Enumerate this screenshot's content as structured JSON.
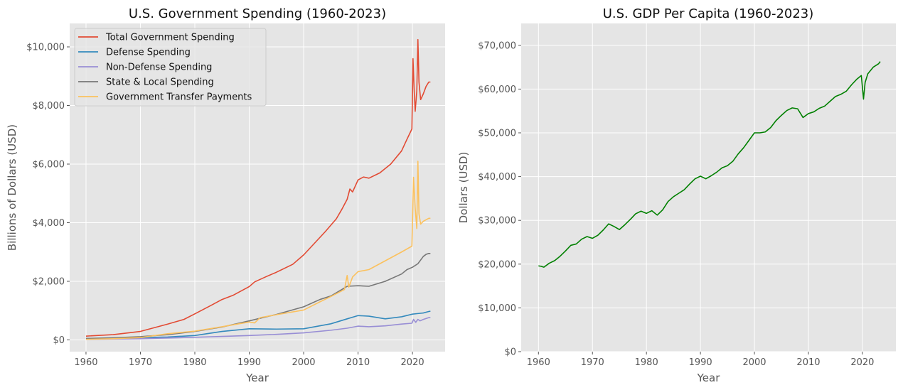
{
  "chart_data": [
    {
      "type": "line",
      "title": "U.S. Government Spending (1960-2023)",
      "xlabel": "Year",
      "ylabel": "Billions of Dollars (USD)",
      "xlim": [
        1957,
        2026
      ],
      "ylim": [
        -400,
        10800
      ],
      "xticks": [
        1960,
        1970,
        1980,
        1990,
        2000,
        2010,
        2020
      ],
      "xtick_labels": [
        "1960",
        "1970",
        "1980",
        "1990",
        "2000",
        "2010",
        "2020"
      ],
      "yticks": [
        0,
        2000,
        4000,
        6000,
        8000,
        10000
      ],
      "ytick_labels": [
        "$0",
        "$2,000",
        "$4,000",
        "$6,000",
        "$8,000",
        "$10,000"
      ],
      "grid": true,
      "legend_position": "top-left",
      "series": [
        {
          "name": "Total Government Spending",
          "color": "#E24A33",
          "x": [
            1960,
            1965,
            1970,
            1975,
            1978,
            1980,
            1983,
            1985,
            1987,
            1990,
            1991,
            1993,
            1995,
            1998,
            2000,
            2002,
            2004,
            2006,
            2007,
            2008,
            2008.5,
            2009,
            2010,
            2011,
            2012,
            2014,
            2016,
            2018,
            2019,
            2019.9,
            2020.1,
            2020.3,
            2020.5,
            2020.8,
            2021,
            2021.2,
            2021.5,
            2022,
            2022.5,
            2023,
            2023.3
          ],
          "y": [
            130,
            180,
            290,
            540,
            700,
            890,
            1180,
            1380,
            1520,
            1820,
            1980,
            2150,
            2310,
            2580,
            2900,
            3300,
            3700,
            4130,
            4450,
            4800,
            5150,
            5050,
            5460,
            5560,
            5520,
            5700,
            6000,
            6450,
            6850,
            7200,
            9600,
            8600,
            7800,
            8500,
            10250,
            8800,
            8200,
            8400,
            8650,
            8800,
            8800
          ]
        },
        {
          "name": "Defense Spending",
          "color": "#348ABD",
          "x": [
            1960,
            1965,
            1970,
            1975,
            1980,
            1985,
            1990,
            1995,
            2000,
            2005,
            2008,
            2010,
            2012,
            2015,
            2018,
            2020,
            2021,
            2022,
            2023,
            2023.3
          ],
          "y": [
            50,
            55,
            80,
            100,
            150,
            290,
            380,
            370,
            380,
            550,
            720,
            830,
            810,
            720,
            790,
            880,
            900,
            920,
            970,
            980
          ]
        },
        {
          "name": "Non-Defense Spending",
          "color": "#988ED5",
          "x": [
            1960,
            1970,
            1980,
            1985,
            1990,
            1995,
            2000,
            2005,
            2008,
            2010,
            2012,
            2015,
            2018,
            2019.9,
            2020.2,
            2020.6,
            2021,
            2021.4,
            2022,
            2023,
            2023.3
          ],
          "y": [
            15,
            40,
            90,
            120,
            150,
            190,
            240,
            330,
            400,
            470,
            450,
            480,
            540,
            570,
            700,
            600,
            700,
            650,
            700,
            760,
            760
          ]
        },
        {
          "name": "State & Local Spending",
          "color": "#777777",
          "x": [
            1960,
            1965,
            1970,
            1975,
            1980,
            1985,
            1990,
            1995,
            2000,
            2003,
            2005,
            2008,
            2010,
            2012,
            2015,
            2018,
            2019,
            2020,
            2021,
            2022,
            2022.5,
            2023,
            2023.3
          ],
          "y": [
            50,
            70,
            110,
            180,
            290,
            440,
            650,
            870,
            1130,
            1380,
            1500,
            1830,
            1850,
            1830,
            2000,
            2250,
            2400,
            2480,
            2600,
            2850,
            2920,
            2950,
            2950
          ]
        },
        {
          "name": "Government Transfer Payments",
          "color": "#FBC15E",
          "x": [
            1960,
            1965,
            1970,
            1975,
            1980,
            1985,
            1990,
            1991,
            1992,
            1995,
            2000,
            2003,
            2005,
            2007.5,
            2008,
            2008.3,
            2009,
            2010,
            2012,
            2014,
            2016,
            2018,
            2019.9,
            2020.2,
            2020.5,
            2020.8,
            2021,
            2021.2,
            2021.5,
            2022,
            2023,
            2023.3
          ],
          "y": [
            20,
            40,
            80,
            210,
            300,
            450,
            610,
            580,
            760,
            860,
            1020,
            1300,
            1480,
            1720,
            2200,
            1800,
            2150,
            2330,
            2400,
            2600,
            2800,
            3000,
            3200,
            5550,
            4500,
            3800,
            6100,
            4300,
            3950,
            4050,
            4150,
            4150
          ]
        }
      ]
    },
    {
      "type": "line",
      "title": "U.S. GDP Per Capita (1960-2023)",
      "xlabel": "Year",
      "ylabel": "Dollars (USD)",
      "xlim": [
        1956.8,
        2026.2
      ],
      "ylim": [
        0,
        75000
      ],
      "xticks": [
        1960,
        1970,
        1980,
        1990,
        2000,
        2010,
        2020
      ],
      "xtick_labels": [
        "1960",
        "1970",
        "1980",
        "1990",
        "2000",
        "2010",
        "2020"
      ],
      "yticks": [
        0,
        10000,
        20000,
        30000,
        40000,
        50000,
        60000,
        70000
      ],
      "ytick_labels": [
        "$0",
        "$10,000",
        "$20,000",
        "$30,000",
        "$40,000",
        "$50,000",
        "$60,000",
        "$70,000"
      ],
      "grid": true,
      "series": [
        {
          "color": "#008000",
          "x": [
            1960,
            1960.5,
            1961,
            1962,
            1963,
            1964,
            1965,
            1966,
            1967,
            1968,
            1969,
            1970,
            1971,
            1972,
            1973,
            1974,
            1975,
            1976,
            1977,
            1978,
            1979,
            1980,
            1981,
            1982,
            1983,
            1984,
            1985,
            1986,
            1987,
            1988,
            1989,
            1990,
            1991,
            1992,
            1993,
            1994,
            1995,
            1996,
            1997,
            1998,
            1999,
            2000,
            2001,
            2002,
            2003,
            2004,
            2005,
            2006,
            2007,
            2008,
            2009,
            2010,
            2011,
            2012,
            2013,
            2014,
            2015,
            2016,
            2017,
            2018,
            2019,
            2019.8,
            2020.2,
            2020.5,
            2021,
            2022,
            2023,
            2023.3
          ],
          "y": [
            19600,
            19500,
            19300,
            20200,
            20800,
            21800,
            23000,
            24300,
            24600,
            25700,
            26300,
            25900,
            26600,
            27800,
            29200,
            28600,
            27900,
            29000,
            30200,
            31500,
            32100,
            31600,
            32200,
            31200,
            32400,
            34300,
            35400,
            36200,
            37000,
            38300,
            39500,
            40100,
            39500,
            40200,
            41000,
            42000,
            42500,
            43500,
            45200,
            46600,
            48300,
            50000,
            50000,
            50200,
            51200,
            52800,
            54000,
            55100,
            55700,
            55500,
            53500,
            54400,
            54800,
            55600,
            56100,
            57200,
            58300,
            58800,
            59500,
            61000,
            62300,
            63100,
            57700,
            61500,
            63500,
            65000,
            65800,
            66300
          ]
        }
      ]
    }
  ]
}
